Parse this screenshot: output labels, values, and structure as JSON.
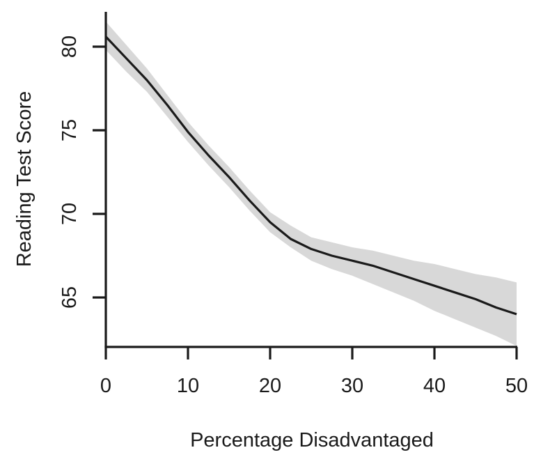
{
  "figure": {
    "background": "#ffffff"
  },
  "style": {
    "curve_color": "#1a1a1a",
    "band_color": "#d8d8d8",
    "axis_color": "#1a1a1a",
    "text_color": "#1a1a1a"
  },
  "chart_data": {
    "type": "line",
    "title": "",
    "xlabel": "Percentage Disadvantaged",
    "ylabel": "Reading Test Score",
    "xlim": [
      0,
      50
    ],
    "ylim": [
      62,
      82.1
    ],
    "x_ticks": [
      0,
      10,
      20,
      30,
      40,
      50
    ],
    "y_ticks": [
      65,
      70,
      75,
      80
    ],
    "grid": false,
    "legend_position": "none",
    "x": [
      0,
      2.5,
      5,
      7.5,
      10,
      12.5,
      15,
      17.5,
      20,
      22.5,
      25,
      27.5,
      30,
      32.5,
      35,
      37.5,
      40,
      42.5,
      45,
      47.5,
      50
    ],
    "series": [
      {
        "name": "fitted-line",
        "values": [
          80.6,
          79.3,
          78.0,
          76.5,
          74.9,
          73.5,
          72.2,
          70.8,
          69.5,
          68.5,
          67.9,
          67.5,
          67.2,
          66.9,
          66.5,
          66.1,
          65.7,
          65.3,
          64.9,
          64.4,
          64.0
        ]
      }
    ],
    "band": {
      "name": "confidence-band",
      "upper": [
        81.5,
        80.1,
        78.7,
        77.1,
        75.5,
        74.1,
        72.8,
        71.4,
        70.1,
        69.3,
        68.6,
        68.3,
        68.0,
        67.8,
        67.5,
        67.2,
        67.0,
        66.7,
        66.4,
        66.2,
        65.9
      ],
      "lower": [
        79.8,
        78.5,
        77.3,
        75.8,
        74.3,
        72.9,
        71.6,
        70.2,
        68.9,
        68.0,
        67.2,
        66.7,
        66.3,
        65.8,
        65.3,
        64.8,
        64.2,
        63.7,
        63.2,
        62.7,
        62.1
      ]
    }
  }
}
